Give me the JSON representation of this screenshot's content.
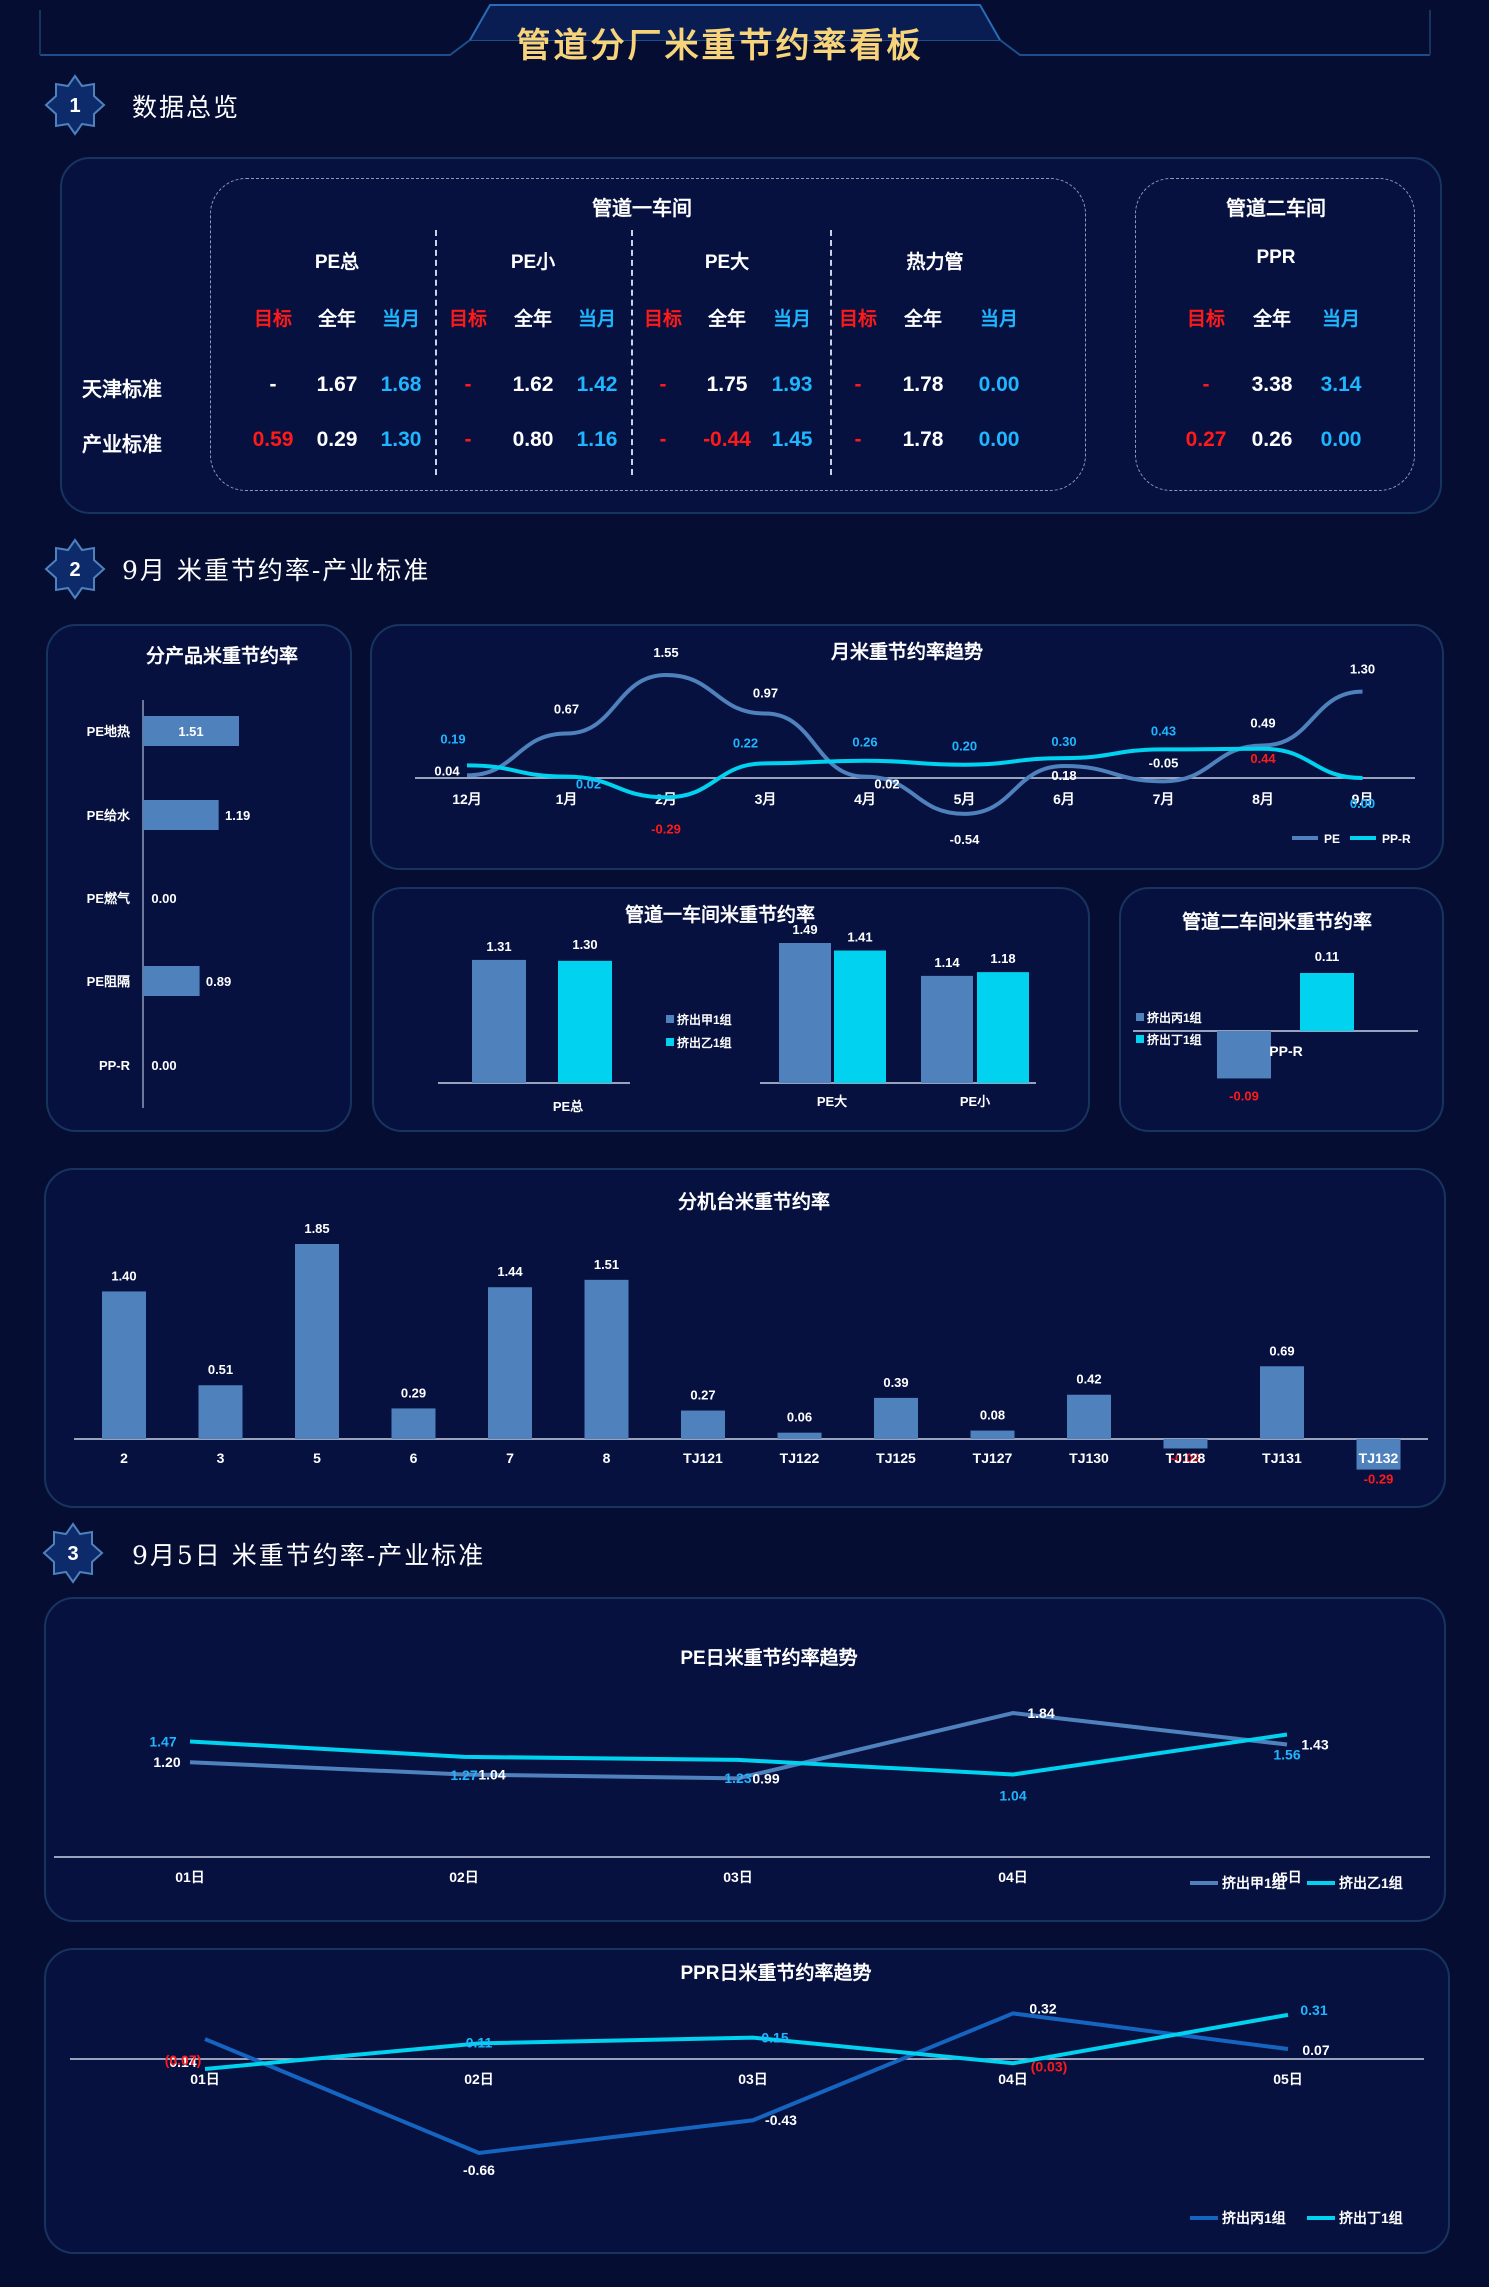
{
  "header": {
    "title": "管道分厂米重节约率看板"
  },
  "sections": [
    {
      "num": "1",
      "title": "数据总览"
    },
    {
      "num": "2",
      "title": "9月 米重节约率-产业标准"
    },
    {
      "num": "3",
      "title": "9月5日 米重节约率-产业标准"
    }
  ],
  "overview": {
    "workshop1": "管道一车间",
    "workshop2": "管道二车间",
    "row_labels": [
      "天津标准",
      "产业标准"
    ],
    "sub_headers": [
      "目标",
      "全年",
      "当月"
    ],
    "groups": [
      {
        "name": "PE总",
        "rows": [
          [
            "-",
            "1.67",
            "1.68"
          ],
          [
            "0.59",
            "0.29",
            "1.30"
          ]
        ]
      },
      {
        "name": "PE小",
        "rows": [
          [
            "-",
            "1.62",
            "1.42"
          ],
          [
            "-",
            "0.80",
            "1.16"
          ]
        ]
      },
      {
        "name": "PE大",
        "rows": [
          [
            "-",
            "1.75",
            "1.93"
          ],
          [
            "-",
            "-0.44",
            "1.45"
          ]
        ]
      },
      {
        "name": "热力管",
        "rows": [
          [
            "-",
            "1.78",
            "0.00"
          ],
          [
            "-",
            "1.78",
            "0.00"
          ]
        ]
      },
      {
        "name": "PPR",
        "rows": [
          [
            "-",
            "3.38",
            "3.14"
          ],
          [
            "0.27",
            "0.26",
            "0.00"
          ]
        ]
      }
    ]
  },
  "colors": {
    "steel": "#4f81bd",
    "cyan": "#00d2f0",
    "red": "#ff1a1a",
    "navy": "#1565c0",
    "panel": "#061140",
    "bg": "#050d33"
  },
  "chart_data": [
    {
      "id": "product",
      "type": "bar",
      "orientation": "horizontal",
      "title": "分产品米重节约率",
      "categories": [
        "PE地热",
        "PE给水",
        "PE燃气",
        "PE阻隔",
        "PP-R"
      ],
      "values": [
        1.51,
        1.19,
        0.0,
        0.89,
        0.0
      ],
      "value_labels": [
        "1.51",
        "1.19",
        "0.00",
        "0.89",
        "0.00"
      ]
    },
    {
      "id": "monthly",
      "type": "line",
      "title": "月米重节约率趋势",
      "categories": [
        "12月",
        "1月",
        "2月",
        "3月",
        "4月",
        "5月",
        "6月",
        "7月",
        "8月",
        "9月"
      ],
      "series": [
        {
          "name": "PE",
          "values": [
            0.04,
            0.67,
            1.55,
            0.97,
            0.02,
            -0.54,
            0.18,
            -0.05,
            0.49,
            1.3
          ]
        },
        {
          "name": "PP-R",
          "values": [
            0.19,
            0.02,
            -0.29,
            0.22,
            0.26,
            0.2,
            0.3,
            0.43,
            0.44,
            0.0
          ]
        }
      ]
    },
    {
      "id": "ws1",
      "type": "bar",
      "title": "管道一车间米重节约率",
      "categories": [
        "PE总",
        "PE大",
        "PE小"
      ],
      "series": [
        {
          "name": "挤出甲1组",
          "values": [
            1.31,
            1.49,
            1.14
          ]
        },
        {
          "name": "挤出乙1组",
          "values": [
            1.3,
            1.41,
            1.18
          ]
        }
      ]
    },
    {
      "id": "ws2",
      "type": "bar",
      "title": "管道二车间米重节约率",
      "categories": [
        "PP-R"
      ],
      "series": [
        {
          "name": "挤出丙1组",
          "values": [
            -0.09
          ]
        },
        {
          "name": "挤出丁1组",
          "values": [
            0.11
          ]
        }
      ]
    },
    {
      "id": "machine",
      "type": "bar",
      "title": "分机台米重节约率",
      "categories": [
        "2",
        "3",
        "5",
        "6",
        "7",
        "8",
        "TJ121",
        "TJ122",
        "TJ125",
        "TJ127",
        "TJ130",
        "TJ128",
        "TJ131",
        "TJ132"
      ],
      "values": [
        1.4,
        0.51,
        1.85,
        0.29,
        1.44,
        1.51,
        0.27,
        0.06,
        0.39,
        0.08,
        0.42,
        -0.09,
        0.69,
        -0.29
      ]
    },
    {
      "id": "pe_daily",
      "type": "line",
      "title": "PE日米重节约率趋势",
      "categories": [
        "01日",
        "02日",
        "03日",
        "04日",
        "05日"
      ],
      "series": [
        {
          "name": "挤出甲1组",
          "values": [
            1.2,
            1.04,
            0.99,
            1.84,
            1.43
          ]
        },
        {
          "name": "挤出乙1组",
          "values": [
            1.47,
            1.27,
            1.23,
            1.04,
            1.56
          ]
        }
      ]
    },
    {
      "id": "ppr_daily",
      "type": "line",
      "title": "PPR日米重节约率趋势",
      "categories": [
        "01日",
        "02日",
        "03日",
        "04日",
        "05日"
      ],
      "series": [
        {
          "name": "挤出丙1组",
          "values": [
            0.14,
            -0.66,
            -0.43,
            0.32,
            0.07
          ]
        },
        {
          "name": "挤出丁1组",
          "values": [
            -0.07,
            0.11,
            0.15,
            -0.03,
            0.31
          ]
        }
      ],
      "value_labels": [
        [
          "0.14",
          "-0.66",
          "-0.43",
          "0.32",
          "0.07"
        ],
        [
          "(0.07)",
          "0.11",
          "0.15",
          "(0.03)",
          "0.31"
        ]
      ]
    }
  ]
}
